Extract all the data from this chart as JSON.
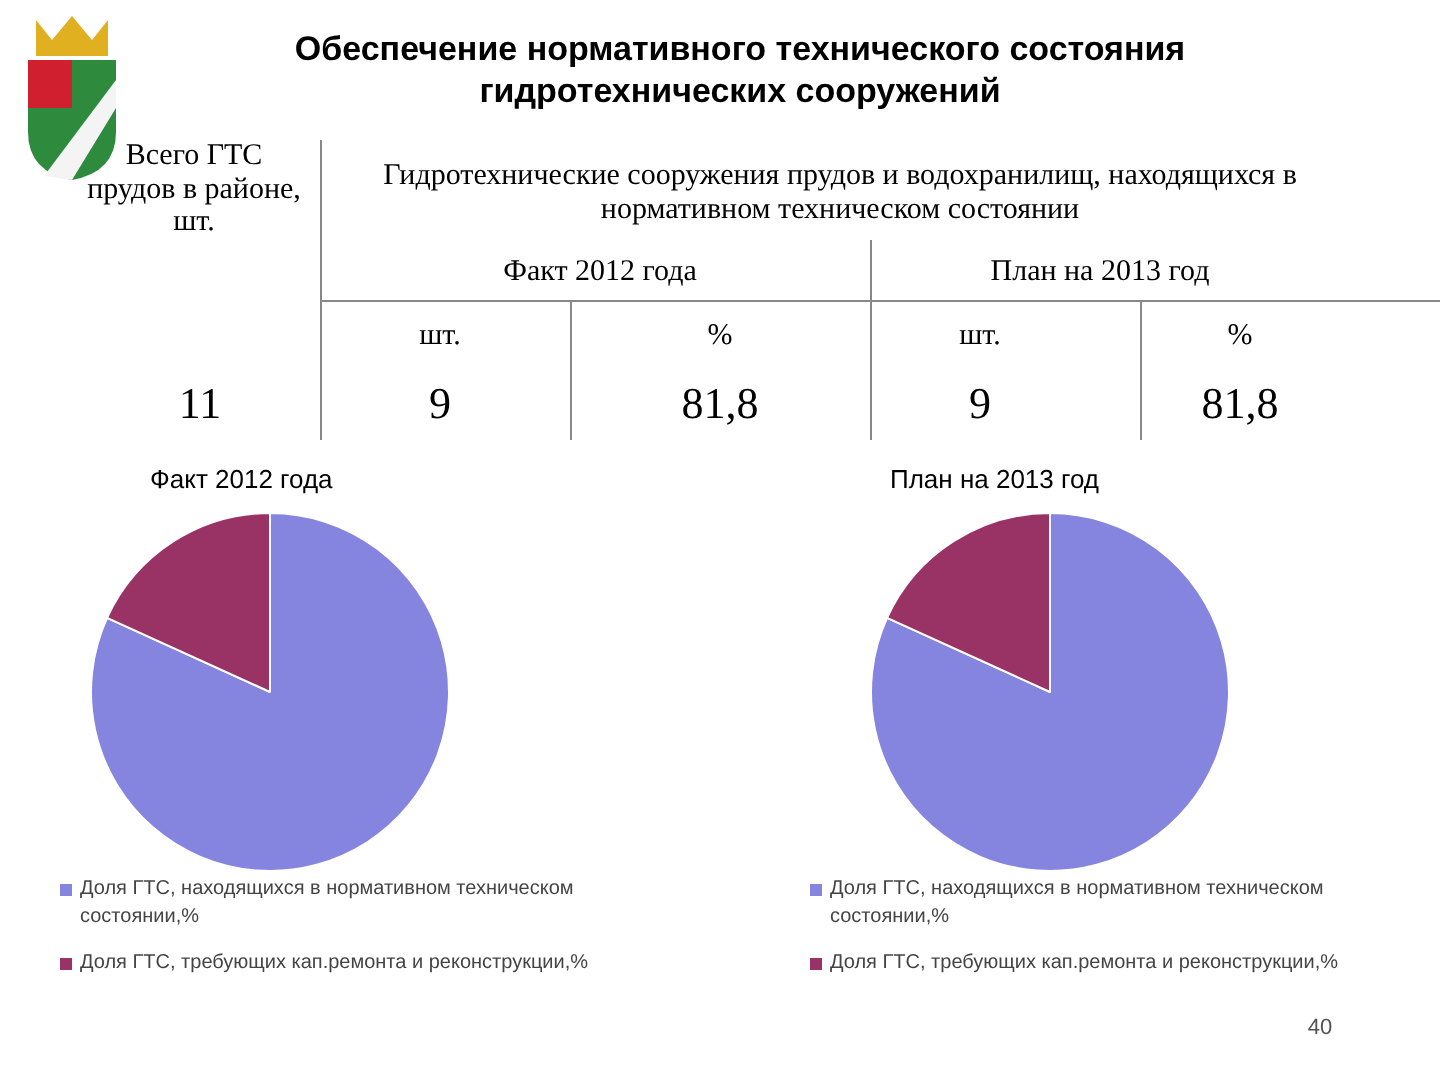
{
  "chart_data": [
    {
      "type": "other",
      "title": "Обеспечение нормативного технического состояния гидротехнических сооружений",
      "annotations": [
        "Всего ГТС прудов в районе, шт.",
        "Гидротехнические сооружения прудов и водохранилищ, находящихся в нормативном техническом состоянии",
        "Факт 2012 года",
        "План на 2013 год",
        "шт.",
        "%",
        "шт.",
        "%",
        "11",
        "9",
        "81,8",
        "9",
        "81,8"
      ]
    },
    {
      "type": "pie",
      "title": "Факт 2012 года",
      "categories": [
        "Доля ГТС, находящихся в нормативном техническом состоянии,%",
        "Доля ГТС, требующих кап.ремонта и реконструкции,%"
      ],
      "values": [
        81.8,
        18.2
      ],
      "colors": [
        "#8585e0",
        "#993366"
      ],
      "legend": "bottom"
    },
    {
      "type": "pie",
      "title": "План на 2013 год",
      "categories": [
        "Доля ГТС, находящихся в нормативном техническом состоянии,%",
        "Доля ГТС, требующих кап.ремонта и реконструкции,%"
      ],
      "values": [
        81.8,
        18.2
      ],
      "colors": [
        "#8585e0",
        "#993366"
      ],
      "legend": "bottom",
      "annotations": [
        "40"
      ]
    }
  ]
}
